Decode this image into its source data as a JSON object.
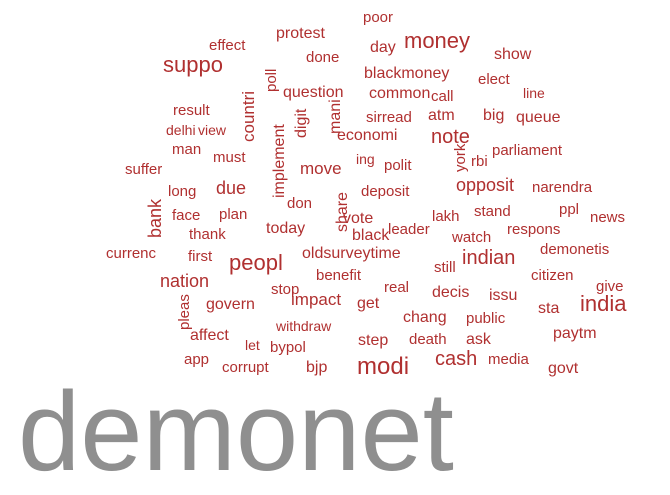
{
  "words": [
    "poor",
    "effect",
    "protest",
    "day",
    "money",
    "done",
    "show",
    "suppo",
    "poll",
    "blackmoney",
    "elect",
    "question",
    "common",
    "call",
    "line",
    "result",
    "countri",
    "digit",
    "mani",
    "sirread",
    "atm",
    "big",
    "queue",
    "delhi",
    "view",
    "economi",
    "note",
    "man",
    "must",
    "implement",
    "ing",
    "polit",
    "york",
    "rbi",
    "parliament",
    "suffer",
    "move",
    "due",
    "long",
    "don",
    "share",
    "deposit",
    "opposit",
    "narendra",
    "bank",
    "face",
    "plan",
    "vote",
    "lakh",
    "stand",
    "ppl",
    "news",
    "thank",
    "today",
    "black",
    "leader",
    "watch",
    "respons",
    "currenc",
    "first",
    "oldsurveytime",
    "indian",
    "demonetis",
    "peopl",
    "still",
    "nation",
    "benefit",
    "citizen",
    "give",
    "real",
    "stop",
    "decis",
    "issu",
    "india",
    "pleas",
    "govern",
    "impact",
    "get",
    "sta",
    "chang",
    "public",
    "affect",
    "withdraw",
    "paytm",
    "step",
    "death",
    "ask",
    "let",
    "bypol",
    "cash",
    "media",
    "app",
    "corrupt",
    "bjp",
    "modi",
    "govt",
    "demonet"
  ]
}
